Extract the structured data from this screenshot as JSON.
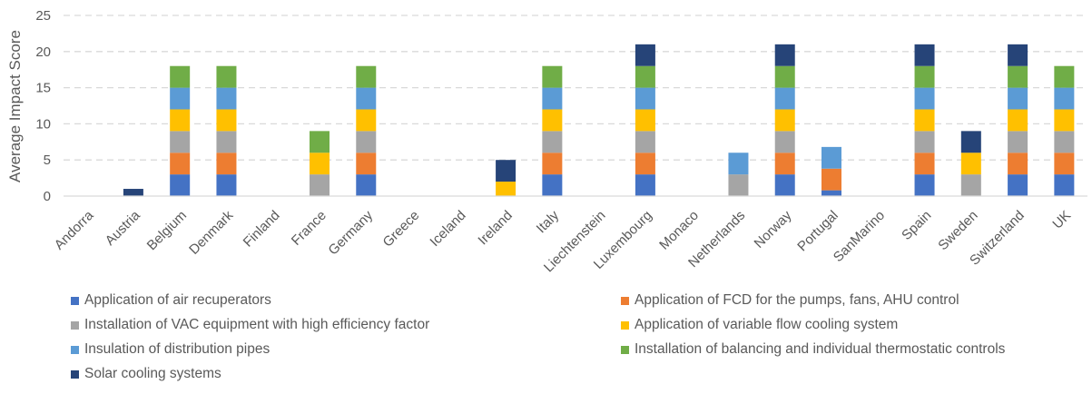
{
  "chart_data": {
    "type": "bar",
    "stacked": true,
    "ylabel": "Average Impact Score",
    "xlabel": "",
    "ylim": [
      0,
      25
    ],
    "yticks": [
      0,
      5,
      10,
      15,
      20,
      25
    ],
    "grid": "horizontal-dashed",
    "legend_position": "bottom",
    "categories": [
      "Andorra",
      "Austria",
      "Belgium",
      "Denmark",
      "Finland",
      "France",
      "Germany",
      "Greece",
      "Iceland",
      "Ireland",
      "Italy",
      "Liechtenstein",
      "Luxembourg",
      "Monaco",
      "Netherlands",
      "Norway",
      "Portugal",
      "SanMarino",
      "Spain",
      "Sweden",
      "Switzerland",
      "UK"
    ],
    "series": [
      {
        "name": "Application of air recuperators",
        "color": "#4472C4",
        "values": [
          0,
          0,
          3,
          3,
          0,
          0,
          3,
          0,
          0,
          0,
          3,
          0,
          3,
          0,
          0,
          3,
          0.8,
          0,
          3,
          0,
          3,
          3
        ]
      },
      {
        "name": "Application of FCD for the pumps, fans, AHU control",
        "color": "#ED7D31",
        "values": [
          0,
          0,
          3,
          3,
          0,
          0,
          3,
          0,
          0,
          0,
          3,
          0,
          3,
          0,
          0,
          3,
          3,
          0,
          3,
          0,
          3,
          3
        ]
      },
      {
        "name": "Installation of VAC equipment with high efficiency factor",
        "color": "#A5A5A5",
        "values": [
          0,
          0,
          3,
          3,
          0,
          3,
          3,
          0,
          0,
          0,
          3,
          0,
          3,
          0,
          3,
          3,
          0,
          0,
          3,
          3,
          3,
          3
        ]
      },
      {
        "name": "Application of variable flow cooling system",
        "color": "#FFC000",
        "values": [
          0,
          0,
          3,
          3,
          0,
          3,
          3,
          0,
          0,
          2,
          3,
          0,
          3,
          0,
          0,
          3,
          0,
          0,
          3,
          3,
          3,
          3
        ]
      },
      {
        "name": "Insulation of distribution pipes",
        "color": "#5B9BD5",
        "values": [
          0,
          0,
          3,
          3,
          0,
          0,
          3,
          0,
          0,
          0,
          3,
          0,
          3,
          0,
          3,
          3,
          3,
          0,
          3,
          0,
          3,
          3
        ]
      },
      {
        "name": "Installation of balancing and individual thermostatic controls",
        "color": "#70AD47",
        "values": [
          0,
          0,
          3,
          3,
          0,
          3,
          3,
          0,
          0,
          0,
          3,
          0,
          3,
          0,
          0,
          3,
          0,
          0,
          3,
          0,
          3,
          3
        ]
      },
      {
        "name": "Solar cooling systems",
        "color": "#264478",
        "values": [
          0,
          1,
          0,
          0,
          0,
          0,
          0,
          0,
          0,
          3,
          0,
          0,
          3,
          0,
          0,
          3,
          0,
          0,
          3,
          3,
          3,
          0
        ]
      }
    ]
  }
}
